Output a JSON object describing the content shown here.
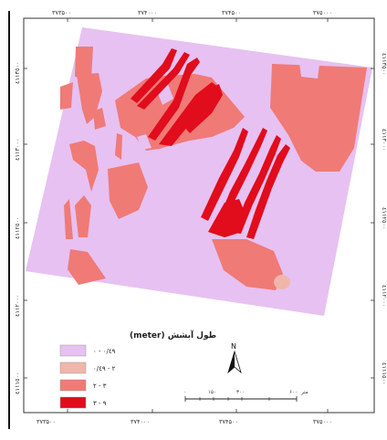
{
  "grid": {
    "x_labels": [
      "۳۷۳۵۰۰",
      "۳۷۴۰۰۰",
      "۳۷۴۵۰۰",
      "۳۷۵۰۰۰"
    ],
    "y_labels": [
      "٤١١٣٥٠٠",
      "٤١١٣٠٠٠",
      "٤١١٢٥٠٠",
      "٤١١٢٠٠٠",
      "٤١١١٥٠٠"
    ]
  },
  "legend": {
    "title": "طول آبشش (meter)",
    "items": [
      {
        "label": "۰ - ۰/٤۹",
        "color": "#e7c1f2"
      },
      {
        "label": "۰/٤۹ - ۲",
        "color": "#f0b6ab"
      },
      {
        "label": "۲ - ۳",
        "color": "#f07a76"
      },
      {
        "label": "۳ - ۹",
        "color": "#e10c1c"
      }
    ]
  },
  "scalebar": {
    "labels": [
      "۰",
      "۱۵۰",
      "۳۰۰",
      "۶۰۰"
    ],
    "unit": "متر"
  },
  "north_arrow": {
    "label": "N"
  },
  "colors": {
    "frame": "#222222",
    "grid": "#9a9a9a"
  }
}
